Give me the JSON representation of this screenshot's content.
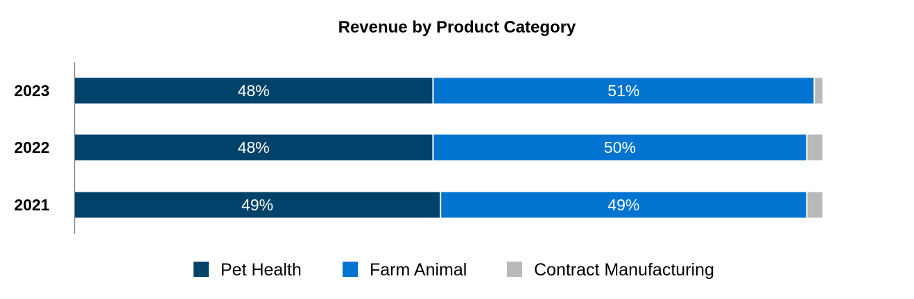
{
  "chart_data": {
    "type": "bar",
    "orientation": "horizontal",
    "stacked": true,
    "normalized_percent": true,
    "title": "Revenue by Product Category",
    "categories": [
      "2023",
      "2022",
      "2021"
    ],
    "series": [
      {
        "name": "Pet Health",
        "color": "#00426a",
        "values": [
          48,
          48,
          49
        ],
        "labels": [
          "48%",
          "48%",
          "49%"
        ]
      },
      {
        "name": "Farm Animal",
        "color": "#0074d0",
        "values": [
          51,
          50,
          49
        ],
        "labels": [
          "51%",
          "50%",
          "49%"
        ]
      },
      {
        "name": "Contract Manufacturing",
        "color": "#b9b9b9",
        "values": [
          1,
          2,
          2
        ],
        "labels": [
          "",
          "",
          ""
        ]
      }
    ],
    "xlim": [
      0,
      100
    ],
    "xlabel": "",
    "ylabel": "",
    "grid": false,
    "legend_position": "bottom-center"
  }
}
